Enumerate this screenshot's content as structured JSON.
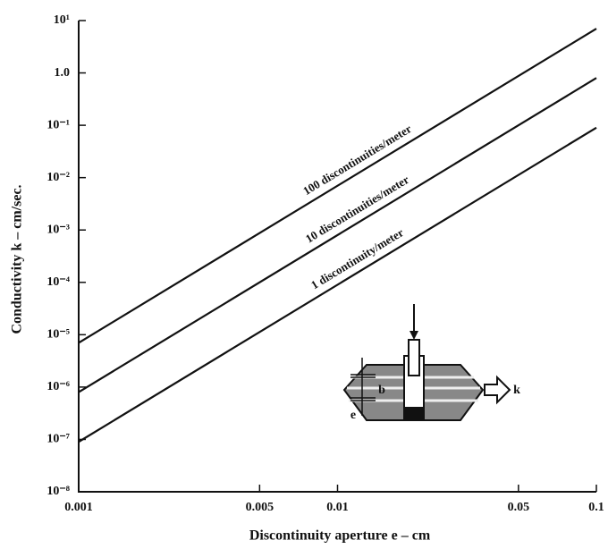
{
  "chart_data": {
    "type": "line",
    "xlabel": "Discontinuity aperture e – cm",
    "ylabel": "Conductivity k – cm/sec.",
    "xscale": "log",
    "yscale": "log",
    "x": [
      0.001,
      0.1
    ],
    "series": [
      {
        "name": "100 discontinuities/meter",
        "color": "#111111",
        "values": [
          7e-06,
          7
        ]
      },
      {
        "name": "10 discontinuities/meter",
        "color": "#111111",
        "values": [
          8e-07,
          0.8
        ]
      },
      {
        "name": "1 discontinuity/meter",
        "color": "#111111",
        "values": [
          9e-08,
          0.09
        ]
      }
    ],
    "xlim": [
      0.001,
      0.1
    ],
    "xticks": [
      0.001,
      0.005,
      0.01,
      0.05,
      0.1
    ],
    "ylim": [
      1e-08,
      10
    ],
    "yticks": [
      {
        "value": 10,
        "label": "10¹"
      },
      {
        "value": 1,
        "label": "1.0"
      },
      {
        "value": 0.1,
        "label": "10⁻¹"
      },
      {
        "value": 0.01,
        "label": "10⁻²"
      },
      {
        "value": 0.001,
        "label": "10⁻³"
      },
      {
        "value": 0.0001,
        "label": "10⁻⁴"
      },
      {
        "value": 1e-05,
        "label": "10⁻⁵"
      },
      {
        "value": 1e-06,
        "label": "10⁻⁶"
      },
      {
        "value": 1e-07,
        "label": "10⁻⁷"
      },
      {
        "value": 1e-08,
        "label": "10⁻⁸"
      }
    ],
    "annotations": [
      "b",
      "e",
      "k"
    ]
  }
}
